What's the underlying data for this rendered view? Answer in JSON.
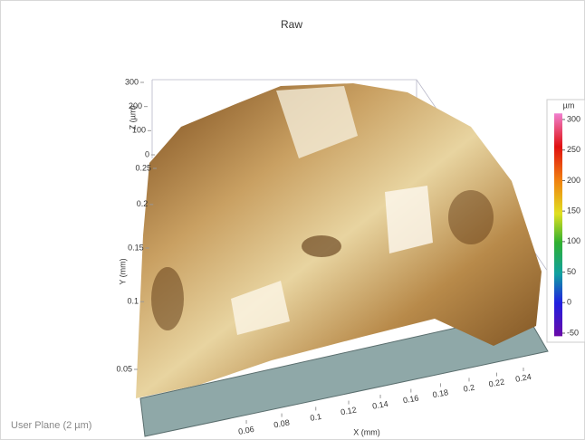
{
  "chart_data": {
    "type": "surface3d",
    "title": "Raw",
    "xlabel": "X (mm)",
    "ylabel": "Y (mm)",
    "zlabel": "Z (µm)",
    "xticks": [
      0.06,
      0.08,
      0.1,
      0.12,
      0.14,
      0.16,
      0.18,
      0.2,
      0.22,
      0.24
    ],
    "yticks": [
      0.05,
      0.1,
      0.15,
      0.2,
      0.25
    ],
    "zlim": [
      0,
      300
    ],
    "zticks": [
      0,
      100,
      200,
      300
    ],
    "colorbar": {
      "label": "µm",
      "lim": [
        -55,
        310
      ],
      "ticks": [
        300,
        250,
        200,
        150,
        100,
        50,
        0,
        -50
      ]
    },
    "plane_label": "User Plane (2 µm)"
  }
}
